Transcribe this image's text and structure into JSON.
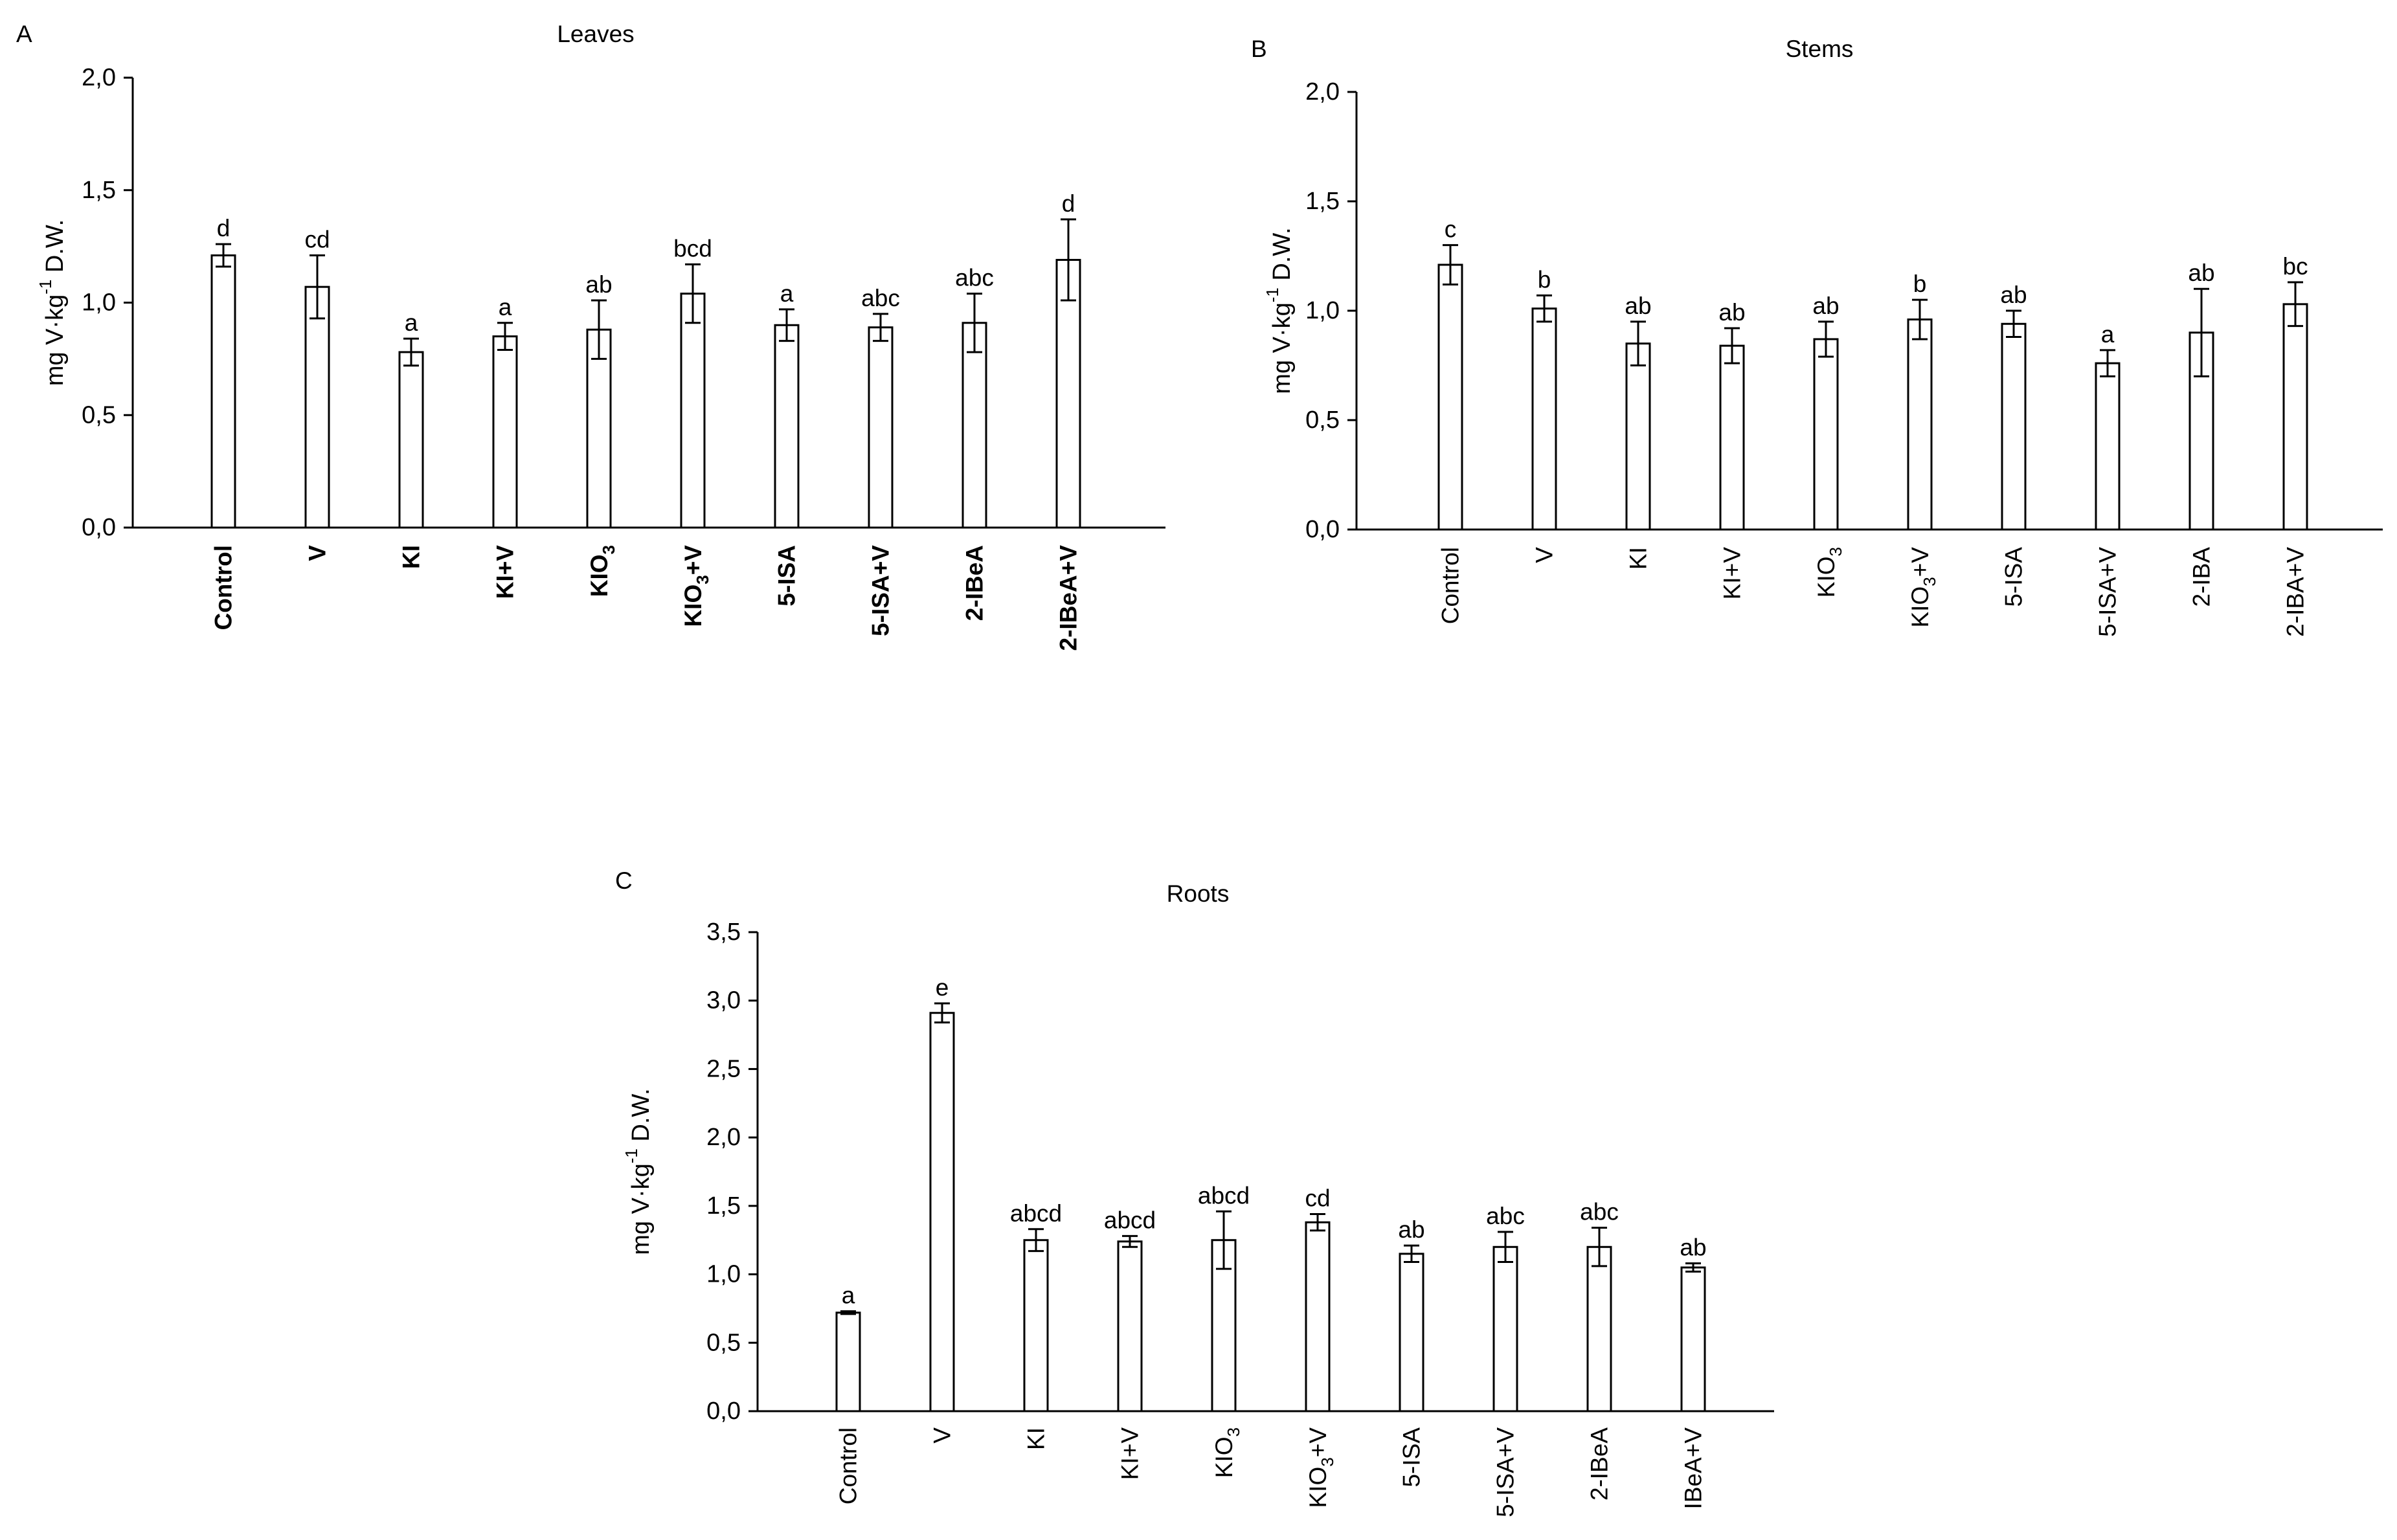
{
  "chart_data": [
    {
      "type": "bar",
      "panel_label": "A",
      "title": "Leaves",
      "ylabel_parts": [
        "mg V",
        "·",
        "kg",
        "-1",
        " D.W."
      ],
      "ylim": [
        0,
        2.0
      ],
      "yticks": [
        "0,0",
        "0,5",
        "1,0",
        "1,5",
        "2,0"
      ],
      "ytick_values": [
        0,
        0.5,
        1.0,
        1.5,
        2.0
      ],
      "bold_categories": true,
      "categories": [
        "Control",
        "V",
        "KI",
        "KI+V",
        "KIO3",
        "KIO3+V",
        "5-ISA",
        "5-ISA+V",
        "2-IBeA",
        "2-IBeA+V"
      ],
      "values": [
        1.21,
        1.07,
        0.78,
        0.85,
        0.88,
        1.04,
        0.9,
        0.89,
        0.91,
        1.19
      ],
      "errors": [
        0.05,
        0.14,
        0.06,
        0.06,
        0.13,
        0.13,
        0.07,
        0.06,
        0.13,
        0.18
      ],
      "letters": [
        "d",
        "cd",
        "a",
        "a",
        "ab",
        "bcd",
        "a",
        "abc",
        "abc",
        "d"
      ]
    },
    {
      "type": "bar",
      "panel_label": "B",
      "title": "Stems",
      "ylabel_parts": [
        "mg V",
        "·",
        "kg",
        "-1",
        " D.W."
      ],
      "ylim": [
        0,
        2.0
      ],
      "yticks": [
        "0,0",
        "0,5",
        "1,0",
        "1,5",
        "2,0"
      ],
      "ytick_values": [
        0,
        0.5,
        1.0,
        1.5,
        2.0
      ],
      "bold_categories": false,
      "categories": [
        "Control",
        "V",
        "KI",
        "KI+V",
        "KIO3",
        "KIO3+V",
        "5-ISA",
        "5-ISA+V",
        "2-IBA",
        "2-IBA+V"
      ],
      "values": [
        1.21,
        1.01,
        0.85,
        0.84,
        0.87,
        0.96,
        0.94,
        0.76,
        0.9,
        1.03
      ],
      "errors": [
        0.09,
        0.06,
        0.1,
        0.08,
        0.08,
        0.09,
        0.06,
        0.06,
        0.2,
        0.1
      ],
      "letters": [
        "c",
        "b",
        "ab",
        "ab",
        "ab",
        "b",
        "ab",
        "a",
        "ab",
        "bc"
      ]
    },
    {
      "type": "bar",
      "panel_label": "C",
      "title": "Roots",
      "ylabel_parts": [
        "mg V",
        "·",
        "kg",
        "-1",
        " D.W."
      ],
      "ylim": [
        0,
        3.5
      ],
      "yticks": [
        "0,0",
        "0,5",
        "1,0",
        "1,5",
        "2,0",
        "2,5",
        "3,0",
        "3,5"
      ],
      "ytick_values": [
        0,
        0.5,
        1.0,
        1.5,
        2.0,
        2.5,
        3.0,
        3.5
      ],
      "bold_categories": false,
      "categories": [
        "Control",
        "V",
        "KI",
        "KI+V",
        "KIO3",
        "KIO3+V",
        "5-ISA",
        "5-ISA+V",
        "2-IBeA",
        "IBeA+V"
      ],
      "values": [
        0.72,
        2.91,
        1.25,
        1.24,
        1.25,
        1.38,
        1.15,
        1.2,
        1.2,
        1.05
      ],
      "errors": [
        0.01,
        0.07,
        0.08,
        0.04,
        0.21,
        0.06,
        0.06,
        0.11,
        0.14,
        0.03
      ],
      "letters": [
        "a",
        "e",
        "abcd",
        "abcd",
        "abcd",
        "cd",
        "ab",
        "abc",
        "abc",
        "ab"
      ]
    }
  ]
}
